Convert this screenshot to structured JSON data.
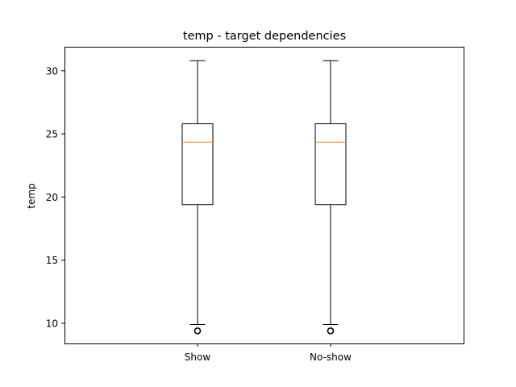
{
  "chart_data": {
    "type": "boxplot",
    "title": "temp - target dependencies",
    "xlabel": "",
    "ylabel": "temp",
    "categories": [
      "Show",
      "No-show"
    ],
    "ylim": [
      8.4,
      31.9
    ],
    "yticks": [
      10,
      15,
      20,
      25,
      30
    ],
    "boxes": [
      {
        "category": "Show",
        "whisker_low": 9.9,
        "q1": 19.4,
        "median": 24.35,
        "q3": 25.8,
        "whisker_high": 30.8,
        "outliers": [
          9.4
        ]
      },
      {
        "category": "No-show",
        "whisker_low": 9.9,
        "q1": 19.4,
        "median": 24.35,
        "q3": 25.8,
        "whisker_high": 30.8,
        "outliers": [
          9.4
        ]
      }
    ],
    "grid": false,
    "colors": {
      "box": "#000000",
      "median": "#ff7f0e",
      "outlier": "#000000"
    }
  }
}
